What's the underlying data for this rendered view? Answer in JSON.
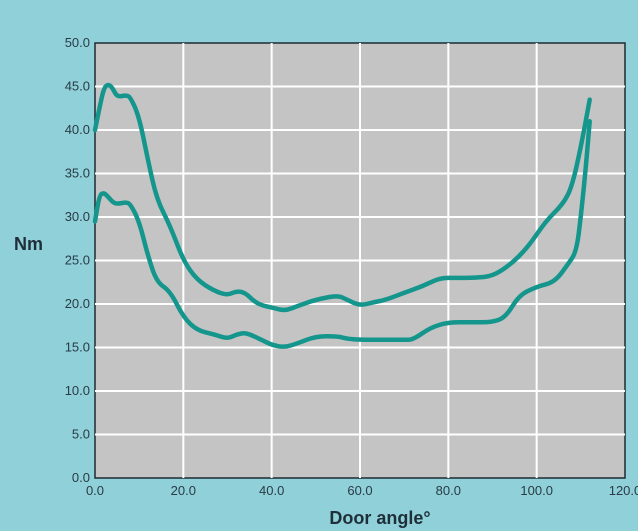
{
  "chart_data": {
    "type": "line",
    "xlabel": "Door angle°",
    "ylabel": "Nm",
    "xlim": [
      0,
      120
    ],
    "ylim": [
      0,
      50
    ],
    "x_ticks": [
      "0.0",
      "20.0",
      "40.0",
      "60.0",
      "80.0",
      "100.0",
      "120.0"
    ],
    "y_ticks": [
      "0.0",
      "5.0",
      "10.0",
      "15.0",
      "20.0",
      "25.0",
      "30.0",
      "35.0",
      "40.0",
      "45.0",
      "50.0"
    ],
    "grid": true,
    "legend": "none",
    "colors": {
      "line": "#15968c",
      "plot_bg": "#c4c4c4",
      "page_bg": "#8fd0d9",
      "grid": "#ffffff"
    },
    "series": [
      {
        "x": [
          0,
          1,
          2,
          3,
          4,
          5,
          7,
          8,
          10,
          12,
          14,
          17,
          20,
          23,
          27,
          30,
          32,
          34,
          36,
          38,
          40,
          43,
          46,
          50,
          55,
          57,
          60,
          63,
          66,
          70,
          74,
          78,
          82,
          86,
          90,
          94,
          98,
          102,
          106,
          108,
          110,
          112
        ],
        "values": [
          40,
          42.5,
          44.8,
          45.3,
          44.8,
          43.8,
          44,
          43.8,
          41.5,
          36.5,
          32,
          29,
          25,
          22.8,
          21.5,
          21,
          21.5,
          21.3,
          20.3,
          19.8,
          19.6,
          19.2,
          19.8,
          20.5,
          21,
          20.5,
          19.8,
          20.2,
          20.5,
          21.3,
          22,
          23,
          23,
          23,
          23.2,
          24.5,
          26.5,
          29.5,
          31.5,
          33.5,
          38,
          43.5
        ]
      },
      {
        "x": [
          0,
          1,
          2,
          3,
          4,
          5,
          7,
          8,
          10,
          12,
          14,
          17,
          20,
          23,
          27,
          30,
          32,
          34,
          36,
          38,
          40,
          43,
          46,
          50,
          55,
          57,
          60,
          65,
          70,
          72,
          76,
          80,
          85,
          90,
          93,
          96,
          100,
          104,
          107,
          109,
          110,
          111,
          112
        ],
        "values": [
          29.5,
          32.5,
          32.8,
          32.3,
          31.7,
          31.5,
          31.7,
          31.5,
          29.5,
          25.5,
          22.5,
          21.5,
          18.5,
          17,
          16.5,
          16,
          16.5,
          16.7,
          16.3,
          15.8,
          15.3,
          15,
          15.5,
          16.3,
          16.3,
          16,
          15.9,
          15.9,
          15.9,
          15.9,
          17.3,
          17.9,
          17.9,
          17.9,
          18.5,
          21,
          22,
          22.5,
          24.5,
          26,
          30,
          35,
          41
        ]
      }
    ]
  }
}
